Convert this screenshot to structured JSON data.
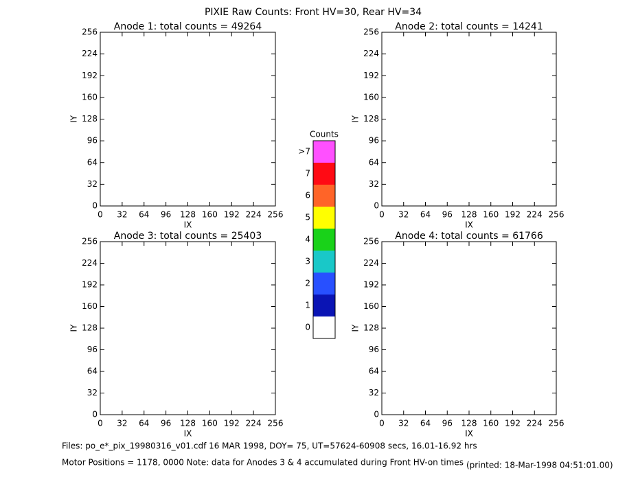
{
  "title": "PIXIE Raw Counts:  Front HV=30, Rear HV=34",
  "chart_data": [
    {
      "type": "image",
      "title": "Anode 1: total counts = 49264",
      "xlabel": "IX",
      "ylabel": "IY",
      "xlim": [
        0,
        256
      ],
      "xticks": [
        0,
        32,
        64,
        96,
        128,
        160,
        192,
        224,
        256
      ],
      "ylim": [
        0,
        256
      ],
      "yticks": [
        0,
        32,
        64,
        96,
        128,
        160,
        192,
        224,
        256
      ]
    },
    {
      "type": "image",
      "title": "Anode 2: total counts = 14241",
      "xlabel": "IX",
      "ylabel": "IY",
      "xlim": [
        0,
        256
      ],
      "xticks": [
        0,
        32,
        64,
        96,
        128,
        160,
        192,
        224,
        256
      ],
      "ylim": [
        0,
        256
      ],
      "yticks": [
        0,
        32,
        64,
        96,
        128,
        160,
        192,
        224,
        256
      ]
    },
    {
      "type": "image",
      "title": "Anode 3: total counts = 25403",
      "xlabel": "IX",
      "ylabel": "IY",
      "xlim": [
        0,
        256
      ],
      "xticks": [
        0,
        32,
        64,
        96,
        128,
        160,
        192,
        224,
        256
      ],
      "ylim": [
        0,
        256
      ],
      "yticks": [
        0,
        32,
        64,
        96,
        128,
        160,
        192,
        224,
        256
      ]
    },
    {
      "type": "image",
      "title": "Anode 4: total counts = 61766",
      "xlabel": "IX",
      "ylabel": "IY",
      "xlim": [
        0,
        256
      ],
      "xticks": [
        0,
        32,
        64,
        96,
        128,
        160,
        192,
        224,
        256
      ],
      "ylim": [
        0,
        256
      ],
      "yticks": [
        0,
        32,
        64,
        96,
        128,
        160,
        192,
        224,
        256
      ]
    },
    {
      "type": "colorbar",
      "title": "Counts",
      "categories": [
        "0",
        "1",
        "2",
        "3",
        "4",
        "5",
        "6",
        "7",
        ">7"
      ],
      "colors": [
        "#ffffff",
        "#0a14b4",
        "#2850ff",
        "#19c8c8",
        "#19d219",
        "#ffff00",
        "#ff6428",
        "#ff0a14",
        "#ff50ff"
      ]
    }
  ],
  "footer": {
    "files": "Files: po_e*_pix_19980316_v01.cdf    16 MAR 1998, DOY= 75, UT=57624-60908 secs, 16.01-16.92 hrs",
    "motor": "Motor Positions = 1178, 0000   Note: data for Anodes 3 & 4 accumulated during Front HV-on times",
    "printed": "(printed: 18-Mar-1998 04:51:01.00)"
  }
}
